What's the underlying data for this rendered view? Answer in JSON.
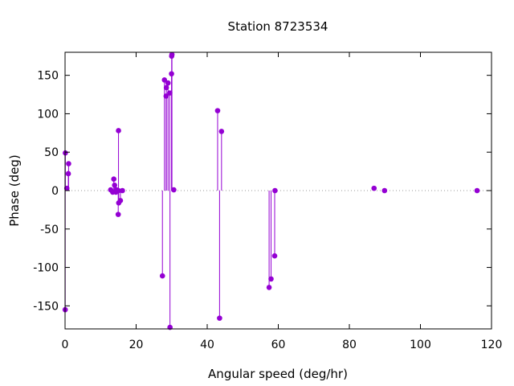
{
  "chart_data": {
    "type": "scatter",
    "style": "impulses-with-points",
    "title": "Station 8723534",
    "xlabel": "Angular speed (deg/hr)",
    "ylabel": "Phase (deg)",
    "xlim": [
      0,
      120
    ],
    "ylim": [
      -180,
      180
    ],
    "xticks": [
      0,
      20,
      40,
      60,
      80,
      100,
      120
    ],
    "yticks": [
      -150,
      -100,
      -50,
      0,
      50,
      100,
      150
    ],
    "zero_line": "dotted",
    "grid": false,
    "legend": "none",
    "color": "#9400d3",
    "series": [
      {
        "x": [
          0.04,
          0.08,
          0.5,
          0.92,
          1.0,
          12.85,
          13.4,
          13.72,
          13.94,
          14.3,
          14.5,
          14.96,
          15.0,
          15.04,
          15.1,
          15.58,
          16.14,
          27.4,
          27.97,
          28.44,
          28.51,
          28.98,
          29.46,
          29.53,
          29.96,
          30.08,
          30.0,
          30.6,
          42.93,
          43.48,
          44.03,
          57.42,
          57.97,
          58.98,
          59.07,
          86.95,
          89.9,
          115.94
        ],
        "y": [
          -155,
          49,
          3,
          22,
          35,
          1,
          -2,
          15,
          7,
          -2,
          1,
          -31,
          0,
          78,
          -16,
          -13,
          0,
          -111,
          144,
          123,
          134,
          140,
          127,
          -178,
          152,
          177,
          175,
          1,
          104,
          -166,
          77,
          -126,
          -115,
          -85,
          0,
          3,
          0,
          0
        ]
      }
    ]
  }
}
